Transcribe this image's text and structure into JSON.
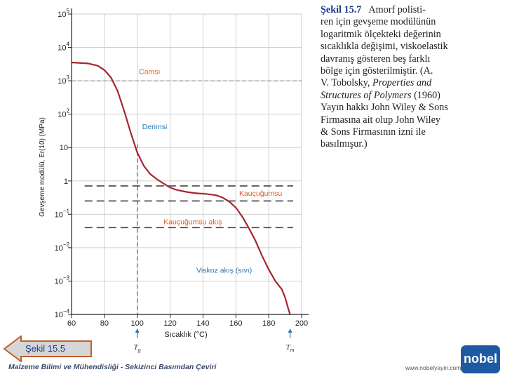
{
  "chart_data": {
    "type": "line",
    "title": "",
    "xlabel": "Sıcaklık (°C)",
    "ylabel": "Gevşeme modülü, Er(10) (MPa)",
    "xlim": [
      60,
      200
    ],
    "ylim_log10": [
      -4,
      5
    ],
    "x_ticks": [
      60,
      80,
      100,
      120,
      140,
      160,
      180,
      200
    ],
    "y_ticks": [
      {
        "exp": 5,
        "label": "10",
        "sup": "5"
      },
      {
        "exp": 4,
        "label": "10",
        "sup": "4"
      },
      {
        "exp": 3,
        "label": "10",
        "sup": "3"
      },
      {
        "exp": 2,
        "label": "10",
        "sup": "2"
      },
      {
        "exp": 1,
        "label": "10",
        "sup": ""
      },
      {
        "exp": 0,
        "label": "1",
        "sup": ""
      },
      {
        "exp": -1,
        "label": "10",
        "sup": "−1"
      },
      {
        "exp": -2,
        "label": "10",
        "sup": "−2"
      },
      {
        "exp": -3,
        "label": "10",
        "sup": "−3"
      },
      {
        "exp": -4,
        "label": "10",
        "sup": "−4"
      }
    ],
    "series": [
      {
        "name": "Er(10)",
        "color": "#a3282f",
        "points_log10": [
          [
            60,
            3.55
          ],
          [
            70,
            3.52
          ],
          [
            76,
            3.45
          ],
          [
            80,
            3.32
          ],
          [
            84,
            3.1
          ],
          [
            88,
            2.7
          ],
          [
            92,
            2.1
          ],
          [
            96,
            1.45
          ],
          [
            100,
            0.85
          ],
          [
            104,
            0.45
          ],
          [
            108,
            0.2
          ],
          [
            112,
            0.05
          ],
          [
            116,
            -0.08
          ],
          [
            120,
            -0.2
          ],
          [
            124,
            -0.27
          ],
          [
            130,
            -0.33
          ],
          [
            136,
            -0.37
          ],
          [
            142,
            -0.39
          ],
          [
            148,
            -0.43
          ],
          [
            152,
            -0.5
          ],
          [
            156,
            -0.62
          ],
          [
            160,
            -0.8
          ],
          [
            164,
            -1.08
          ],
          [
            168,
            -1.42
          ],
          [
            172,
            -1.8
          ],
          [
            176,
            -2.25
          ],
          [
            180,
            -2.65
          ],
          [
            184,
            -3.0
          ],
          [
            188,
            -3.25
          ],
          [
            190,
            -3.5
          ],
          [
            192,
            -3.85
          ],
          [
            193,
            -4.0
          ]
        ]
      }
    ],
    "reference_lines": {
      "glass_level_log10": 3.0,
      "rubbery_levels_log10": [
        -0.15,
        -0.6,
        -1.4
      ],
      "vertical_Tg_x": 100
    },
    "region_labels": [
      {
        "text": "Camsı",
        "x": 101,
        "y_log10": 3.2,
        "color": "#d8602a"
      },
      {
        "text": "Derimsi",
        "x": 103,
        "y_log10": 1.55,
        "color": "#2d78b0"
      },
      {
        "text": "Kauçuğumsu",
        "x": 162,
        "y_log10": -0.45,
        "color": "#d8602a"
      },
      {
        "text": "Kauçuğumsu akış",
        "x": 116,
        "y_log10": -1.3,
        "color": "#d8602a"
      },
      {
        "text": "Viskoz akış (sıvı)",
        "x": 136,
        "y_log10": -2.75,
        "color": "#2d78b0"
      }
    ],
    "bottom_markers": [
      {
        "text": "Tg",
        "x": 100
      },
      {
        "text": "Tm",
        "x": 193
      }
    ]
  },
  "caption": {
    "fig_label": "Şekil 15.7",
    "line1": "Amorf polisti-",
    "line2": "ren için gevşeme modülünün",
    "line3": "logaritmik ölçekteki değerinin",
    "line4": "sıcaklıkla değişimi, viskoelastik",
    "line5": "davranış gösteren beş farklı",
    "line6": "bölge için gösterilmiştir. (A.",
    "line7_a": "V. Tobolsky, ",
    "line7_b": "Properties and",
    "line8_a": "Structures of Polymers",
    "line8_b": " (1960)",
    "line9": "Yayın hakkı John Wiley & Sons",
    "line10": "Firmasına ait olup John Wiley",
    "line11": "& Sons Firmasının izni ile",
    "line12": "basılmışur.)"
  },
  "nav": {
    "back_label": "Şekil 15.5"
  },
  "footer": {
    "book_title": "Malzeme Bilimi ve Mühendisliği - Sekizinci Basımdan Çeviri",
    "url": "www.nobelyayin.com",
    "logo_text": "nobel"
  },
  "colors": {
    "curve": "#a3282f",
    "dash_gray": "#444444",
    "dash_blue": "#2d78b0",
    "orange": "#d8602a",
    "blue_label": "#2d78b0"
  }
}
